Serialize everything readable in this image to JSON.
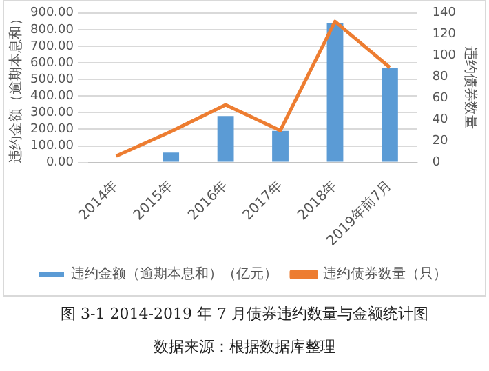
{
  "chart_data": {
    "type": "bar",
    "title": "图 3-1 2014-2019 年 7 月债券违约数量与金额统计图",
    "annotations": [
      "数据来源：根据数据库整理"
    ],
    "ylabel": "违约金额（逾期本息和）",
    "y2label": "违约债券数量",
    "categories": [
      "2014年",
      "2015年",
      "2016年",
      "2017年",
      "2018年",
      "2019年前7月"
    ],
    "series": [
      {
        "name": "违约金额（逾期本息和）（亿元）",
        "color": "#5b9bd5",
        "values": [
          0,
          60,
          280,
          190,
          840,
          570
        ]
      },
      {
        "name": "违约债券数量（只）",
        "type": "line",
        "axis": "y2",
        "color": "#ed7d31",
        "values": [
          6,
          29,
          54,
          30,
          132,
          89
        ]
      }
    ],
    "ylim": [
      0,
      900
    ],
    "yticks": [
      {
        "value": 0,
        "label": "0.00"
      },
      {
        "value": 100,
        "label": "100.00"
      },
      {
        "value": 200,
        "label": "200.00"
      },
      {
        "value": 300,
        "label": "300.00"
      },
      {
        "value": 400,
        "label": "400.00"
      },
      {
        "value": 500,
        "label": "500.00"
      },
      {
        "value": 600,
        "label": "600.00"
      },
      {
        "value": 700,
        "label": "700.00"
      },
      {
        "value": 800,
        "label": "800.00"
      },
      {
        "value": 900,
        "label": "900.00"
      }
    ],
    "y2lim": [
      0,
      140
    ],
    "y2ticks": [
      0,
      20,
      40,
      60,
      80,
      100,
      120,
      140
    ],
    "grid": "y",
    "legend": "bottom",
    "marker": "none"
  }
}
